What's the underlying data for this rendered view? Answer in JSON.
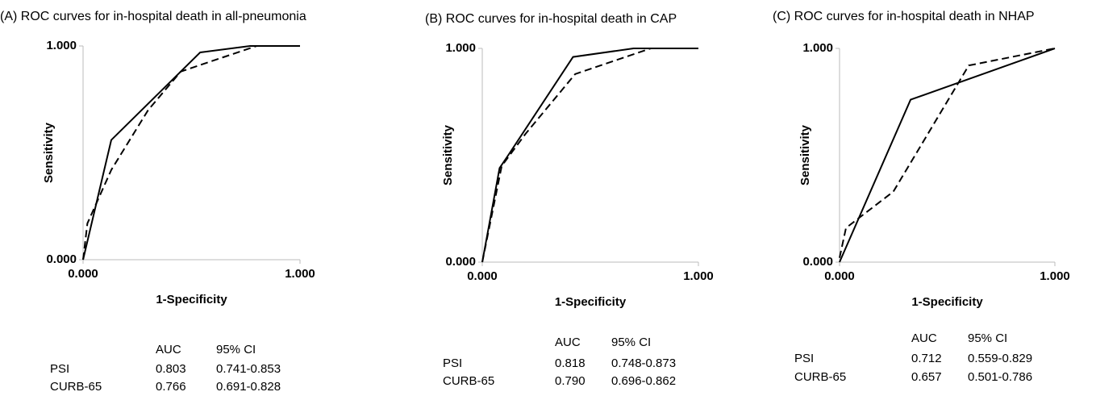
{
  "chart_data": [
    {
      "type": "line",
      "title": "(A) ROC curves for in-hospital death in all-pneumonia",
      "x_label": "1-Specificity",
      "y_label": "Sensitivity",
      "xlim": [
        0,
        1
      ],
      "ylim": [
        0,
        1
      ],
      "xticks": [
        0,
        1
      ],
      "yticks": [
        0,
        1
      ],
      "series": [
        {
          "name": "PSI",
          "color": "#000000",
          "line_style": "solid",
          "x": [
            0,
            0.13,
            0.54,
            0.77,
            1
          ],
          "values": [
            0,
            0.56,
            0.97,
            1,
            1
          ],
          "auc": 0.803,
          "ci": "0.741-0.853"
        },
        {
          "name": "CURB-65",
          "color": "#000000",
          "line_style": "dashed",
          "x": [
            0,
            0.02,
            0.13,
            0.3,
            0.45,
            0.8,
            1
          ],
          "values": [
            0,
            0.17,
            0.42,
            0.7,
            0.88,
            1,
            1
          ],
          "auc": 0.766,
          "ci": "0.691-0.828"
        }
      ],
      "table_header": [
        "AUC",
        "95% CI"
      ]
    },
    {
      "type": "line",
      "title": "(B) ROC curves for in-hospital death in CAP",
      "x_label": "1-Specificity",
      "y_label": "Sensitivity",
      "xlim": [
        0,
        1
      ],
      "ylim": [
        0,
        1
      ],
      "xticks": [
        0,
        1
      ],
      "yticks": [
        0,
        1
      ],
      "series": [
        {
          "name": "PSI",
          "color": "#000000",
          "line_style": "solid",
          "x": [
            0,
            0.08,
            0.12,
            0.42,
            0.7,
            1
          ],
          "values": [
            0,
            0.44,
            0.5,
            0.96,
            1,
            1
          ],
          "auc": 0.818,
          "ci": "0.748-0.873"
        },
        {
          "name": "CURB-65",
          "color": "#000000",
          "line_style": "dashed",
          "x": [
            0,
            0.09,
            0.2,
            0.43,
            0.78,
            1
          ],
          "values": [
            0,
            0.45,
            0.6,
            0.88,
            1,
            1
          ],
          "auc": 0.79,
          "ci": "0.696-0.862"
        }
      ],
      "table_header": [
        "AUC",
        "95% CI"
      ]
    },
    {
      "type": "line",
      "title": "(C) ROC curves for in-hospital death in NHAP",
      "x_label": "1-Specificity",
      "y_label": "Sensitivity",
      "xlim": [
        0,
        1
      ],
      "ylim": [
        0,
        1
      ],
      "xticks": [
        0,
        1
      ],
      "yticks": [
        0,
        1
      ],
      "series": [
        {
          "name": "PSI",
          "color": "#000000",
          "line_style": "solid",
          "x": [
            0,
            0.33,
            1
          ],
          "values": [
            0,
            0.76,
            1
          ],
          "auc": 0.712,
          "ci": "0.559-0.829"
        },
        {
          "name": "CURB-65",
          "color": "#000000",
          "line_style": "dashed",
          "x": [
            0,
            0.03,
            0.25,
            0.6,
            1
          ],
          "values": [
            0.02,
            0.16,
            0.33,
            0.92,
            1
          ],
          "auc": 0.657,
          "ci": "0.501-0.786"
        }
      ],
      "table_header": [
        "AUC",
        "95% CI"
      ]
    }
  ]
}
